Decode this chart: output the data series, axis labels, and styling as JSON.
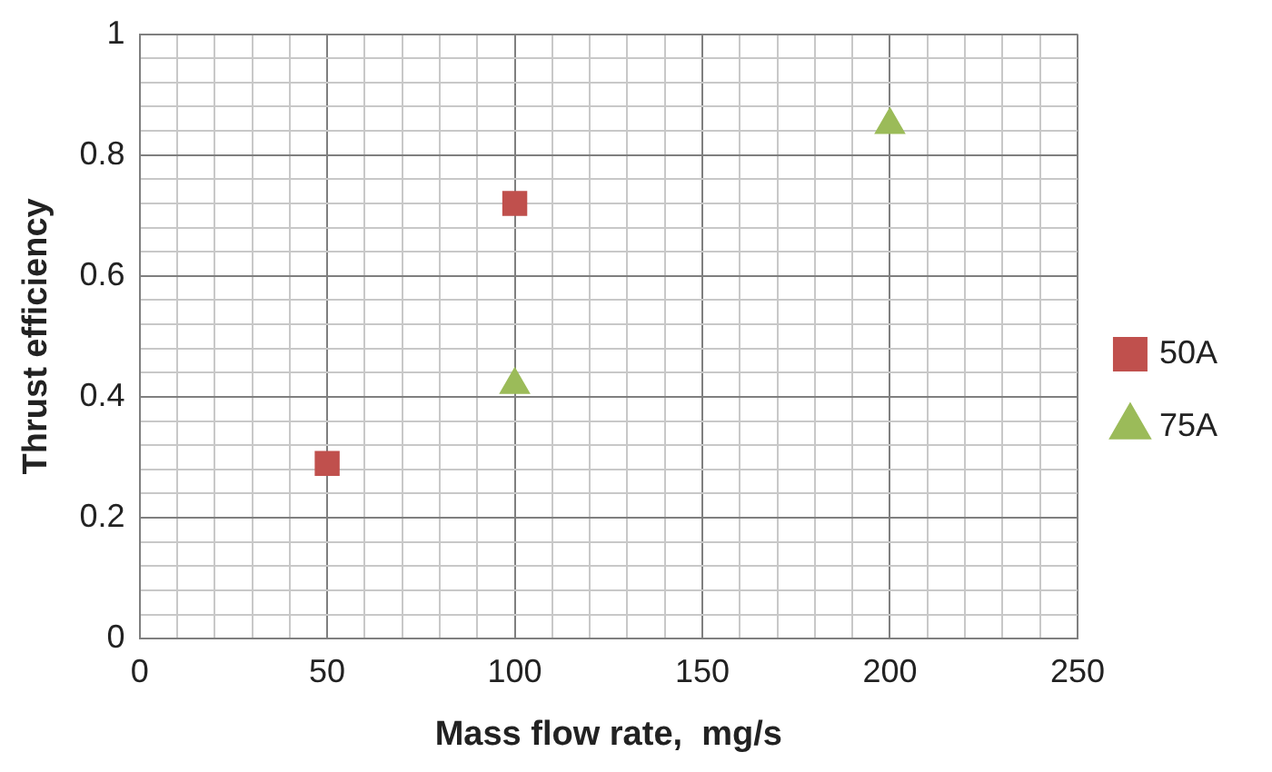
{
  "chart_data": {
    "type": "scatter",
    "xlabel": "Mass flow rate,  mg/s",
    "ylabel": "Thrust efficiency",
    "xlim": [
      0,
      250
    ],
    "ylim": [
      0,
      1
    ],
    "xticks": [
      0,
      {
        "value": 10,
        "label": null
      },
      {
        "value": 20,
        "label": null
      },
      {
        "value": 30,
        "label": null
      },
      {
        "value": 40,
        "label": null
      },
      50,
      {
        "value": 60,
        "label": null
      },
      {
        "value": 70,
        "label": null
      },
      {
        "value": 80,
        "label": null
      },
      {
        "value": 90,
        "label": null
      },
      100,
      {
        "value": 110,
        "label": null
      },
      {
        "value": 120,
        "label": null
      },
      {
        "value": 130,
        "label": null
      },
      {
        "value": 140,
        "label": null
      },
      150,
      {
        "value": 160,
        "label": null
      },
      {
        "value": 170,
        "label": null
      },
      {
        "value": 180,
        "label": null
      },
      {
        "value": 190,
        "label": null
      },
      200,
      {
        "value": 210,
        "label": null
      },
      {
        "value": 220,
        "label": null
      },
      {
        "value": 230,
        "label": null
      },
      {
        "value": 240,
        "label": null
      },
      250
    ],
    "yticks": [
      0,
      {
        "value": 0.04,
        "label": null
      },
      {
        "value": 0.08,
        "label": null
      },
      {
        "value": 0.12,
        "label": null
      },
      {
        "value": 0.16,
        "label": null
      },
      0.2,
      {
        "value": 0.24,
        "label": null
      },
      {
        "value": 0.28,
        "label": null
      },
      {
        "value": 0.32,
        "label": null
      },
      {
        "value": 0.36,
        "label": null
      },
      0.4,
      {
        "value": 0.44,
        "label": null
      },
      {
        "value": 0.48,
        "label": null
      },
      {
        "value": 0.52,
        "label": null
      },
      {
        "value": 0.56,
        "label": null
      },
      0.6,
      {
        "value": 0.64,
        "label": null
      },
      {
        "value": 0.68,
        "label": null
      },
      {
        "value": 0.72,
        "label": null
      },
      {
        "value": 0.76,
        "label": null
      },
      0.8,
      {
        "value": 0.84,
        "label": null
      },
      {
        "value": 0.88,
        "label": null
      },
      {
        "value": 0.92,
        "label": null
      },
      {
        "value": 0.96,
        "label": null
      },
      1
    ],
    "grid": true,
    "legend": "right",
    "series": [
      {
        "name": "50A",
        "color": "#c0504d",
        "marker": "square",
        "x": [
          50,
          100
        ],
        "values": [
          0.29,
          0.72
        ]
      },
      {
        "name": "75A",
        "color": "#9bbb59",
        "marker": "triangle",
        "x": [
          100,
          200
        ],
        "values": [
          0.42,
          0.85
        ]
      }
    ]
  }
}
